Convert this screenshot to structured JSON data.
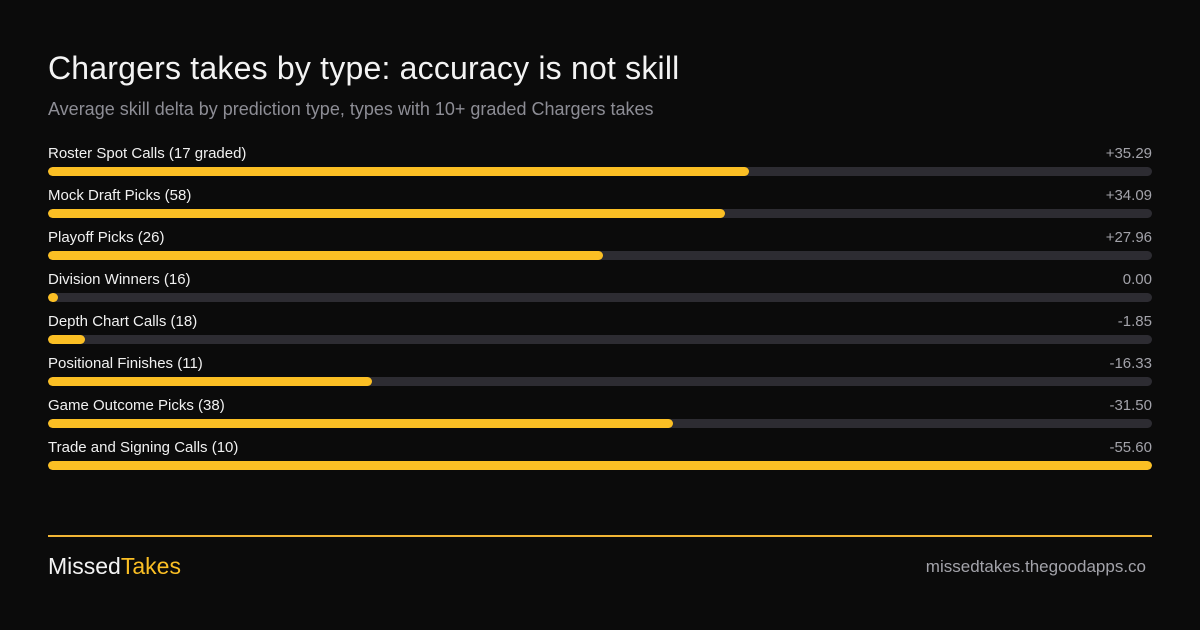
{
  "title": "Chargers takes by type: accuracy is not skill",
  "subtitle": "Average skill delta by prediction type, types with 10+ graded Chargers takes",
  "colors": {
    "background": "#0b0b0b",
    "bar_fill": "#fbbf24",
    "bar_track": "#2d2c32",
    "accent_line": "#f1b535"
  },
  "chart_data": {
    "type": "bar",
    "orientation": "horizontal",
    "bar_length_encodes": "absolute value of skill delta",
    "categories": [
      "Roster Spot Calls (17 graded)",
      "Mock Draft Picks (58)",
      "Playoff Picks (26)",
      "Division Winners (16)",
      "Depth Chart Calls (18)",
      "Positional Finishes (11)",
      "Game Outcome Picks (38)",
      "Trade and Signing Calls (10)"
    ],
    "values": [
      35.29,
      34.09,
      27.96,
      0.0,
      -1.85,
      -16.33,
      -31.5,
      -55.6
    ],
    "value_labels": [
      "+35.29",
      "+34.09",
      "+27.96",
      "0.00",
      "-1.85",
      "-16.33",
      "-31.50",
      "-55.60"
    ],
    "title": "Chargers takes by type: accuracy is not skill",
    "subtitle": "Average skill delta by prediction type, types with 10+ graded Chargers takes",
    "grid": false
  },
  "footer": {
    "brand_first": "Missed",
    "brand_second": "Takes",
    "url": "missedtakes.thegoodapps.co"
  }
}
